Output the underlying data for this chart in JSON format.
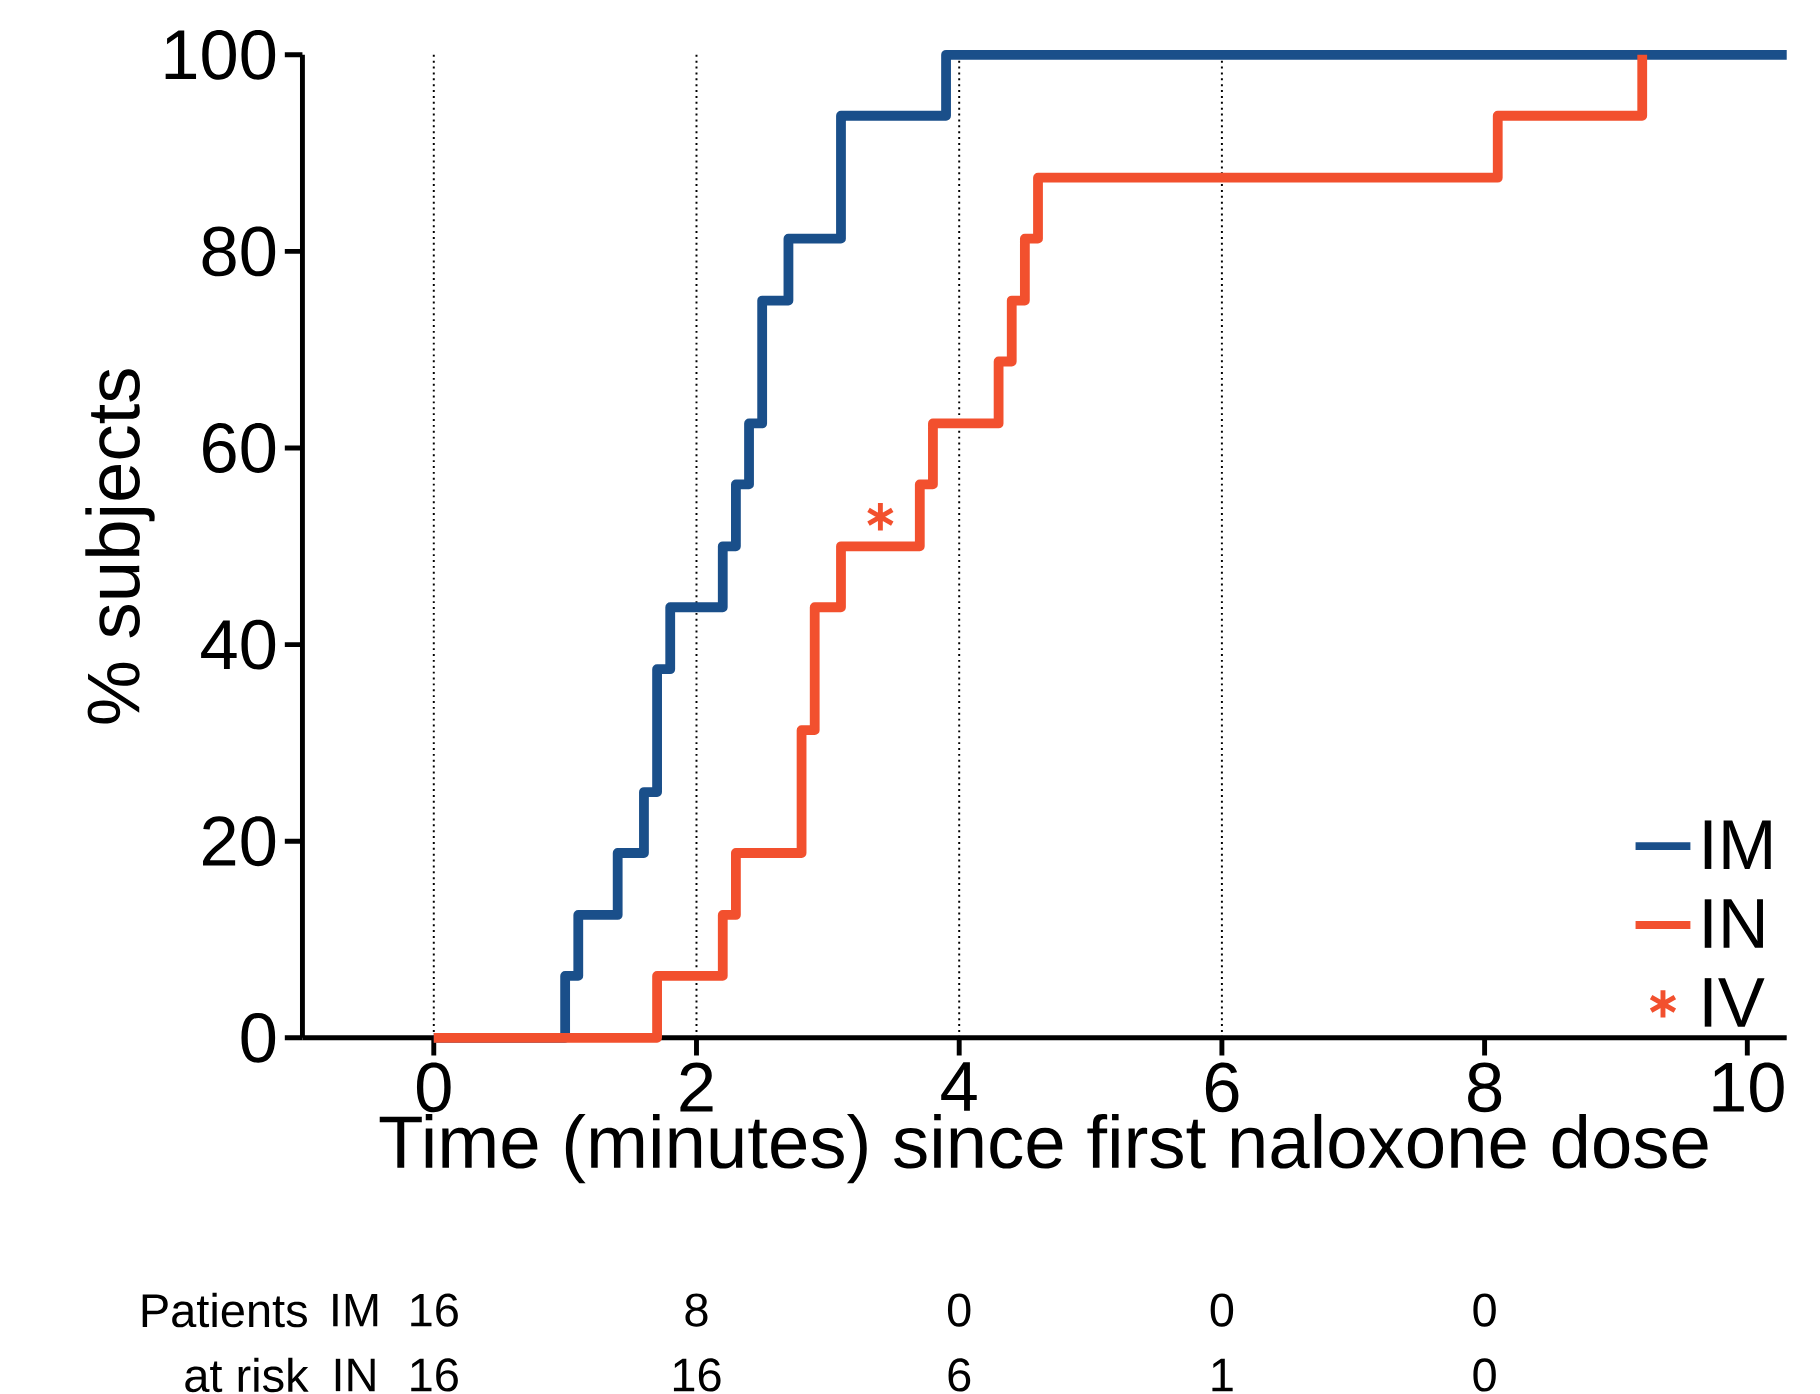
{
  "chart_data": {
    "type": "step",
    "xlabel": "Time (minutes) since first naloxone dose",
    "ylabel": "% subjects",
    "xlim": [
      -1,
      10.3
    ],
    "xticks": [
      0,
      2,
      4,
      6,
      8,
      10
    ],
    "ylim": [
      0,
      100
    ],
    "yticks": [
      0,
      20,
      40,
      60,
      80,
      100
    ],
    "series": [
      {
        "name": "IM",
        "color": "#1a4f8a",
        "x": [
          0,
          1.0,
          1.1,
          1.4,
          1.6,
          1.7,
          1.8,
          2.2,
          2.3,
          2.4,
          2.5,
          2.7,
          3.1,
          3.9,
          10.3
        ],
        "values": [
          0,
          6.3,
          12.5,
          18.8,
          25,
          37.5,
          43.8,
          50,
          56.3,
          62.5,
          75,
          81.3,
          93.8,
          100,
          100
        ]
      },
      {
        "name": "IN",
        "color": "#f2502e",
        "x": [
          0,
          1.7,
          2.2,
          2.3,
          2.8,
          2.9,
          3.1,
          3.7,
          3.8,
          4.3,
          4.4,
          4.5,
          4.6,
          8.1,
          9.2
        ],
        "values": [
          0,
          6.3,
          12.5,
          18.8,
          31.3,
          43.8,
          50,
          56.3,
          62.5,
          68.8,
          75,
          81.3,
          87.5,
          93.8,
          100
        ]
      },
      {
        "name": "IV",
        "type": "scatter",
        "marker": "cross",
        "color": "#f2502e",
        "x": [
          3.4
        ],
        "values": [
          53
        ]
      }
    ],
    "ref_lines": [
      {
        "axis": "x",
        "value": 0,
        "color": "#000000",
        "line_style": "dotted"
      },
      {
        "axis": "x",
        "value": 2,
        "color": "#000000",
        "line_style": "dotted"
      },
      {
        "axis": "x",
        "value": 4,
        "color": "#000000",
        "line_style": "dotted"
      },
      {
        "axis": "x",
        "value": 6,
        "color": "#000000",
        "line_style": "dotted"
      }
    ],
    "legend": "bottom right",
    "annotations": [
      "Patients",
      "at risk",
      "IM",
      "16",
      "8",
      "0",
      "0",
      "0",
      "IN",
      "16",
      "16",
      "6",
      "1",
      "0"
    ]
  }
}
